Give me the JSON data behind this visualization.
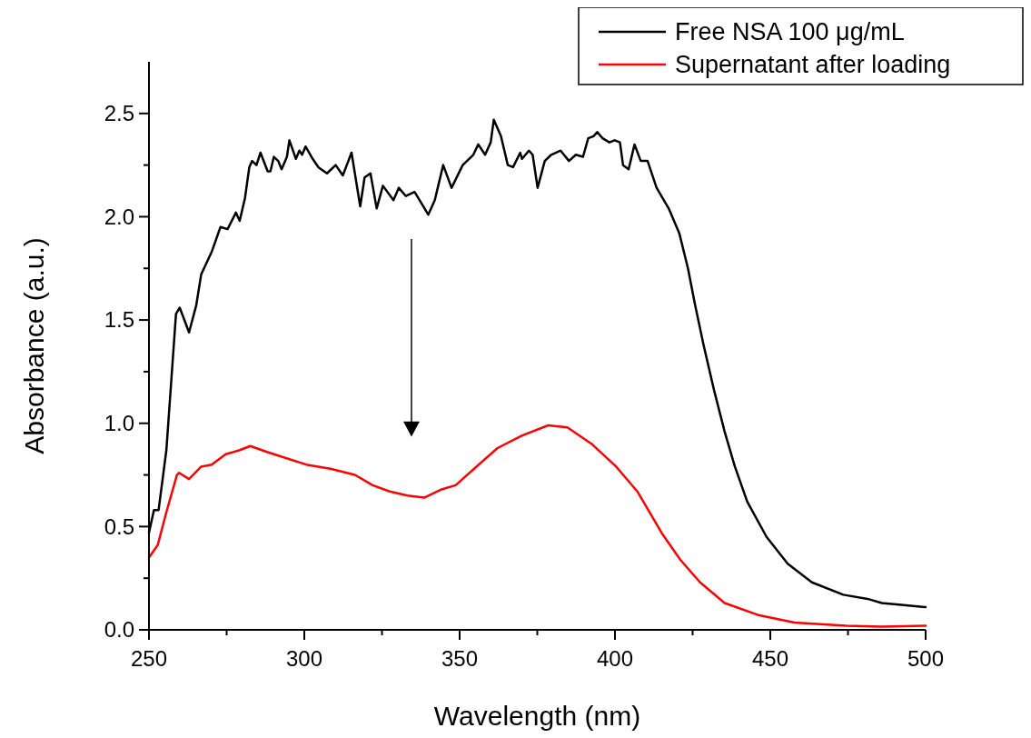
{
  "chart_data": {
    "type": "line",
    "xlabel": "Wavelength (nm)",
    "ylabel": "Absorbance (a.u.)",
    "xlim": [
      250,
      500
    ],
    "ylim": [
      0,
      2.75
    ],
    "xticks": [
      250,
      {
        "value": 275,
        "label": null
      },
      300,
      {
        "value": 325,
        "label": null
      },
      350,
      {
        "value": 375,
        "label": null
      },
      400,
      {
        "value": 425,
        "label": null
      },
      450,
      {
        "value": 475,
        "label": null
      },
      500
    ],
    "yticks": [
      {
        "value": 0,
        "label": "0.0"
      },
      {
        "value": 0.25,
        "label": null
      },
      0.5,
      {
        "value": 0.75,
        "label": null
      },
      {
        "value": 1,
        "label": "1.0"
      },
      {
        "value": 1.25,
        "label": null
      },
      1.5,
      {
        "value": 1.75,
        "label": null
      },
      {
        "value": 2,
        "label": "2.0"
      },
      {
        "value": 2.25,
        "label": null
      },
      2.5
    ],
    "legend": "top right",
    "grid": false,
    "line_style": "solid",
    "series": [
      {
        "name": "Free NSA 100 μg/mL",
        "color": "#000000",
        "x": [
          250,
          251.6,
          253.1,
          255.6,
          257.2,
          258.7,
          259.9,
          262.9,
          265.2,
          266.8,
          270.2,
          273,
          275.3,
          278,
          279.2,
          280.9,
          282.3,
          283.2,
          284.6,
          285.9,
          288.2,
          289.1,
          290.2,
          291.6,
          292.7,
          294.4,
          295.2,
          297.3,
          298.4,
          299.3,
          300.4,
          302.7,
          304.5,
          307.3,
          310.1,
          312.4,
          315.2,
          318,
          319.4,
          321.3,
          323.3,
          325.3,
          328.7,
          330.4,
          332.7,
          335.5,
          339.9,
          342,
          344.7,
          347.4,
          351,
          354.4,
          356,
          358.2,
          360,
          361,
          363.3,
          365.5,
          367.2,
          369.5,
          370.1,
          372.3,
          373.5,
          375.1,
          377.4,
          379.5,
          382.5,
          385.2,
          387.4,
          389.7,
          391.4,
          393.1,
          394.3,
          396,
          398.2,
          399.9,
          401.6,
          402.6,
          404.4,
          406.3,
          408.3,
          410.5,
          413.4,
          417.3,
          420.7,
          423.5,
          425.7,
          428.5,
          431.9,
          435.3,
          438.6,
          442.6,
          448.8,
          455.6,
          463.4,
          473.5,
          481.3,
          485.9,
          493,
          500
        ],
        "values": [
          0.47,
          0.58,
          0.58,
          0.87,
          1.21,
          1.53,
          1.56,
          1.44,
          1.57,
          1.72,
          1.83,
          1.95,
          1.94,
          2.02,
          1.98,
          2.09,
          2.24,
          2.27,
          2.25,
          2.31,
          2.22,
          2.22,
          2.29,
          2.27,
          2.23,
          2.29,
          2.37,
          2.28,
          2.32,
          2.3,
          2.34,
          2.28,
          2.24,
          2.21,
          2.25,
          2.2,
          2.31,
          2.05,
          2.19,
          2.21,
          2.04,
          2.15,
          2.08,
          2.14,
          2.1,
          2.12,
          2.01,
          2.08,
          2.25,
          2.14,
          2.25,
          2.3,
          2.35,
          2.3,
          2.36,
          2.47,
          2.39,
          2.25,
          2.24,
          2.31,
          2.28,
          2.32,
          2.3,
          2.14,
          2.27,
          2.3,
          2.32,
          2.27,
          2.3,
          2.29,
          2.38,
          2.39,
          2.41,
          2.38,
          2.36,
          2.37,
          2.36,
          2.25,
          2.23,
          2.35,
          2.27,
          2.27,
          2.14,
          2.04,
          1.92,
          1.75,
          1.58,
          1.38,
          1.16,
          0.96,
          0.79,
          0.62,
          0.45,
          0.32,
          0.23,
          0.17,
          0.15,
          0.13,
          0.12,
          0.11
        ]
      },
      {
        "name": "Supernatant after loading",
        "color": "#ff0000",
        "x": [
          250,
          252.8,
          255.6,
          259,
          259.7,
          262.9,
          266.8,
          270.2,
          274.7,
          279.2,
          282.6,
          288.2,
          300.6,
          308.4,
          316.3,
          322,
          327.5,
          333.2,
          338.6,
          344.2,
          348.7,
          355.4,
          362.2,
          370,
          378.5,
          384.7,
          392.5,
          400.4,
          407.2,
          415,
          421,
          427.4,
          435.3,
          446.5,
          457.8,
          474.5,
          485.9,
          500
        ],
        "values": [
          0.35,
          0.41,
          0.57,
          0.75,
          0.76,
          0.73,
          0.79,
          0.8,
          0.85,
          0.87,
          0.89,
          0.86,
          0.8,
          0.78,
          0.75,
          0.7,
          0.67,
          0.65,
          0.64,
          0.68,
          0.7,
          0.79,
          0.88,
          0.94,
          0.99,
          0.98,
          0.9,
          0.79,
          0.67,
          0.47,
          0.34,
          0.23,
          0.13,
          0.07,
          0.035,
          0.02,
          0.015,
          0.02
        ]
      }
    ]
  }
}
